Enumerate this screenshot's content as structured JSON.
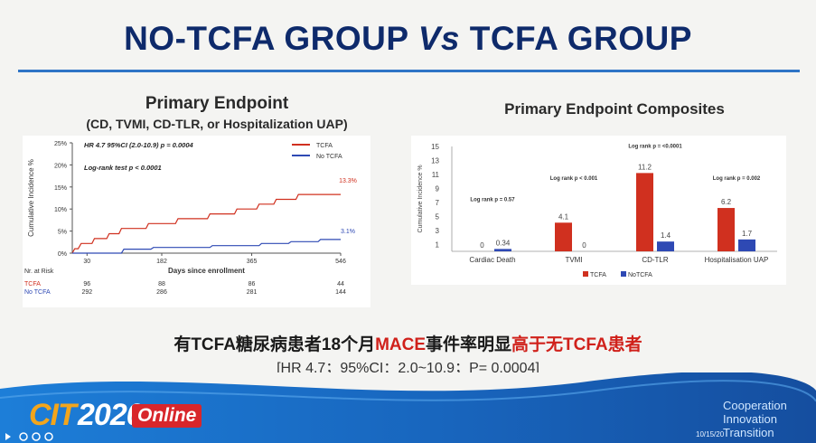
{
  "slide": {
    "title_a": "NO-TCFA GROUP ",
    "title_b": "Vs",
    "title_c": " TCFA GROUP",
    "accent": "#2e74c6",
    "title_color": "#0e2a6b"
  },
  "left": {
    "title": "Primary Endpoint",
    "subtitle": "(CD, TVMI, CD-TLR, or Hospitalization UAP)"
  },
  "right": {
    "title": "Primary Endpoint Composites"
  },
  "chart_data": [
    {
      "type": "line",
      "title": "Primary Endpoint",
      "subtitle": "(CD, TVMI, CD-TLR, or Hospitalization UAP)",
      "xlabel": "Days since enrollment",
      "ylabel": "Cumulative Incidence %",
      "x_ticks": [
        "30",
        "182",
        "365",
        "546"
      ],
      "y_ticks": [
        "0%",
        "5%",
        "10%",
        "15%",
        "20%",
        "25%"
      ],
      "xlim": [
        0,
        546
      ],
      "ylim": [
        0,
        25
      ],
      "annotations": [
        "HR 4.7 95%CI (2.0-10.9) p = 0.0004",
        "Log-rank test p < 0.0001"
      ],
      "end_labels": [
        "13.3%",
        "3.1%"
      ],
      "legend": [
        "TCFA",
        "No TCFA"
      ],
      "legend_position": "top-right",
      "series": [
        {
          "name": "TCFA",
          "color": "#d0301f",
          "points": [
            [
              0,
              0
            ],
            [
              5,
              1.0
            ],
            [
              12,
              1.0
            ],
            [
              18,
              2.2
            ],
            [
              40,
              2.2
            ],
            [
              45,
              3.3
            ],
            [
              70,
              3.3
            ],
            [
              75,
              4.4
            ],
            [
              95,
              4.4
            ],
            [
              100,
              5.6
            ],
            [
              150,
              5.6
            ],
            [
              155,
              6.7
            ],
            [
              210,
              6.7
            ],
            [
              215,
              7.8
            ],
            [
              275,
              7.8
            ],
            [
              280,
              8.9
            ],
            [
              330,
              8.9
            ],
            [
              335,
              10.0
            ],
            [
              375,
              10.0
            ],
            [
              380,
              11.1
            ],
            [
              410,
              11.1
            ],
            [
              415,
              12.2
            ],
            [
              455,
              12.2
            ],
            [
              460,
              13.3
            ],
            [
              546,
              13.3
            ]
          ]
        },
        {
          "name": "No TCFA",
          "color": "#2e49b4",
          "points": [
            [
              0,
              0
            ],
            [
              100,
              0
            ],
            [
              105,
              0.9
            ],
            [
              160,
              0.9
            ],
            [
              165,
              1.3
            ],
            [
              280,
              1.3
            ],
            [
              285,
              1.7
            ],
            [
              380,
              1.7
            ],
            [
              385,
              2.2
            ],
            [
              440,
              2.2
            ],
            [
              445,
              2.6
            ],
            [
              500,
              2.6
            ],
            [
              505,
              3.1
            ],
            [
              546,
              3.1
            ]
          ]
        }
      ],
      "risk_table": {
        "header": "Nr. at Risk",
        "rows": [
          {
            "name": "TCFA",
            "values": [
              "96",
              "88",
              "86",
              "44"
            ]
          },
          {
            "name": "No TCFA",
            "values": [
              "292",
              "286",
              "281",
              "144"
            ]
          }
        ]
      }
    },
    {
      "type": "bar",
      "title": "Primary Endpoint Composites",
      "ylabel": "Cumulative Incidence %",
      "y_ticks": [
        "1",
        "3",
        "5",
        "7",
        "9",
        "11",
        "13",
        "15"
      ],
      "ylim": [
        0,
        15
      ],
      "categories": [
        "Cardiac Death",
        "TVMI",
        "CD-TLR",
        "Hospitalisation  UAP"
      ],
      "series": [
        {
          "name": "TCFA",
          "color": "#d0301f",
          "values": [
            0,
            4.1,
            11.2,
            6.2
          ],
          "labels": [
            "0",
            "4.1",
            "11.2",
            "6.2"
          ]
        },
        {
          "name": "NoTCFA",
          "color": "#2e49b4",
          "values": [
            0.34,
            0,
            1.4,
            1.7
          ],
          "labels": [
            "0.34",
            "0",
            "1.4",
            "1.7"
          ]
        }
      ],
      "pvalues": [
        "Log rank p = 0.57",
        "Log rank p < 0.001",
        "Log rank p = <0.0001",
        "Log rank p = 0.002"
      ],
      "legend_position": "bottom"
    }
  ],
  "footer": {
    "note_a": "有TCFA糖尿病患者18个月",
    "note_b": "MACE",
    "note_c": "事件率明显",
    "note_d": "高于无TCFA患者",
    "stats": "[HR 4.7；95%CI：2.0~10.9；P= 0.0004]"
  },
  "banner": {
    "logo_cit": "CIT",
    "logo_year": "2020",
    "logo_online": "Online",
    "tagline": [
      "Cooperation",
      "Innovation",
      "Transition"
    ],
    "date": "10/15/20"
  }
}
